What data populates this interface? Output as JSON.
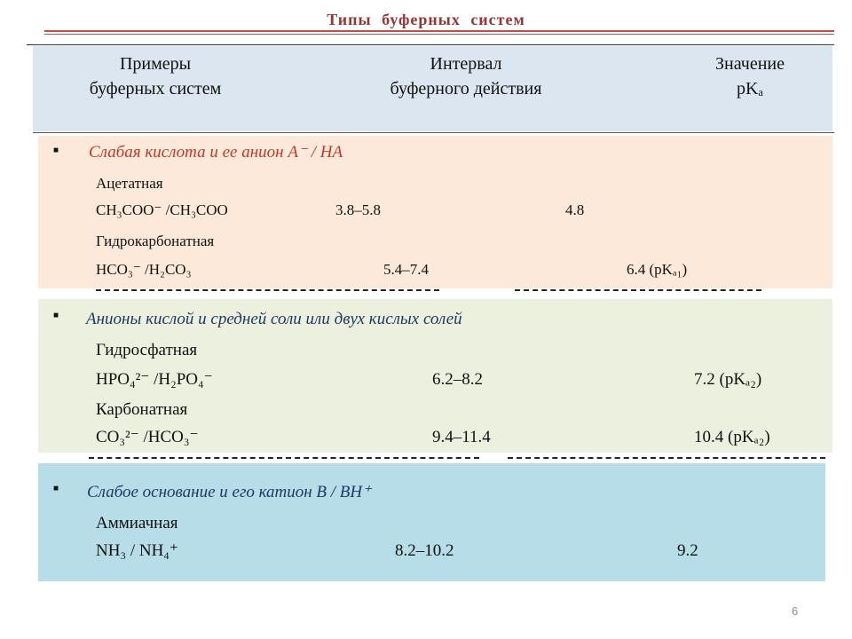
{
  "title": "Типы буферных систем",
  "header": {
    "columns": [
      [
        "Примеры",
        "буферных систем"
      ],
      [
        "Интервал",
        "буферного действия"
      ],
      [
        "Значение",
        "pKₐ"
      ]
    ]
  },
  "sections": [
    {
      "heading": "Слабая кислота и ее анион A⁻ / HA",
      "rows": [
        {
          "name": "Ацетатная",
          "formula": "CH₃COO⁻ /CH₃COO",
          "interval": "3.8–5.8",
          "pka": "4.8"
        },
        {
          "name": "Гидрокарбонатная",
          "formula": "HCO₃⁻ /H₂CO₃",
          "interval": "5.4–7.4",
          "pka": "6.4 (pKₐ₁)"
        }
      ]
    },
    {
      "heading": "Анионы кислой и средней соли или двух кислых солей",
      "rows": [
        {
          "name": "Гидросфатная",
          "formula": "HPO₄²⁻ /H₂PO₄⁻",
          "interval": "6.2–8.2",
          "pka": "7.2 (pKₐ₂)"
        },
        {
          "name": "Карбонатная",
          "formula": "CO₃²⁻ /HCO₃⁻",
          "interval": "9.4–11.4",
          "pka": "10.4 (pKₐ₂)"
        }
      ]
    },
    {
      "heading": "Слабое основание и его катион B / BH⁺",
      "rows": [
        {
          "name": "Аммиачная",
          "formula": "NH₃ / NH₄⁺",
          "interval": "8.2–10.2",
          "pka": "9.2"
        }
      ]
    }
  ],
  "page_number": "6"
}
